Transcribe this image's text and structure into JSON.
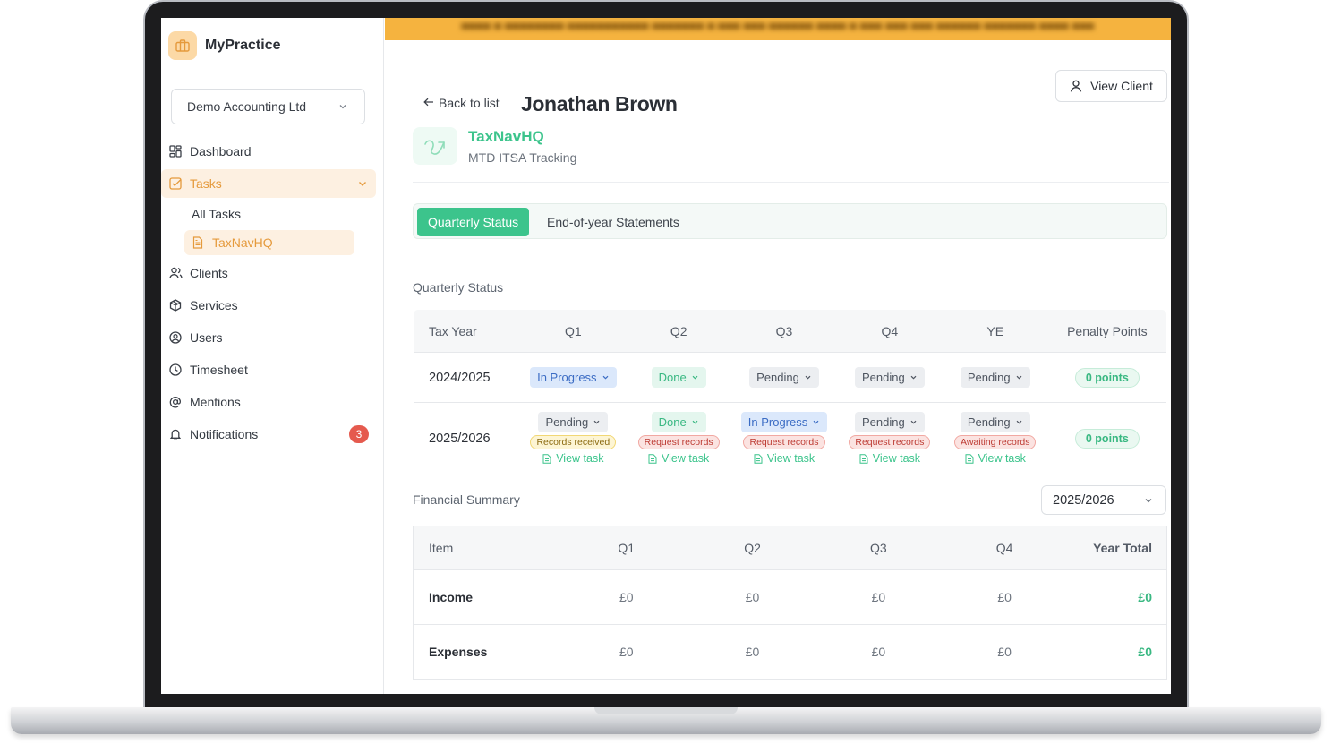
{
  "brand": {
    "name": "MyPractice"
  },
  "org_select": {
    "value": "Demo Accounting Ltd"
  },
  "nav": {
    "dashboard": "Dashboard",
    "tasks": "Tasks",
    "all_tasks": "All Tasks",
    "taxnavhq": "TaxNavHQ",
    "clients": "Clients",
    "services": "Services",
    "users": "Users",
    "timesheet": "Timesheet",
    "mentions": "Mentions",
    "notifications": "Notifications",
    "notifications_count": "3"
  },
  "header": {
    "back_label": "Back to list",
    "title": "Jonathan Brown",
    "view_client_label": "View Client"
  },
  "app": {
    "name": "TaxNavHQ",
    "subtitle": "MTD ITSA Tracking"
  },
  "tabs": {
    "active": "Quarterly Status",
    "inactive": "End-of-year Statements"
  },
  "quarterly": {
    "section_title": "Quarterly Status",
    "columns": [
      "Tax Year",
      "Q1",
      "Q2",
      "Q3",
      "Q4",
      "YE",
      "Penalty Points"
    ],
    "rows": [
      {
        "year": "2024/2025",
        "cells": [
          {
            "status": "In Progress"
          },
          {
            "status": "Done"
          },
          {
            "status": "Pending"
          },
          {
            "status": "Pending"
          },
          {
            "status": "Pending"
          }
        ],
        "points": "0 points"
      },
      {
        "year": "2025/2026",
        "cells": [
          {
            "status": "Pending",
            "tag": "Records received",
            "link": "View task"
          },
          {
            "status": "Done",
            "tag": "Request records",
            "link": "View task"
          },
          {
            "status": "In Progress",
            "tag": "Request records",
            "link": "View task"
          },
          {
            "status": "Pending",
            "tag": "Request records",
            "link": "View task"
          },
          {
            "status": "Pending",
            "tag": "Awaiting records",
            "link": "View task"
          }
        ],
        "points": "0 points"
      }
    ]
  },
  "financial": {
    "section_title": "Financial Summary",
    "year_select": "2025/2026",
    "columns": [
      "Item",
      "Q1",
      "Q2",
      "Q3",
      "Q4",
      "Year Total"
    ],
    "rows": [
      {
        "item": "Income",
        "q1": "£0",
        "q2": "£0",
        "q3": "£0",
        "q4": "£0",
        "total": "£0"
      },
      {
        "item": "Expenses",
        "q1": "£0",
        "q2": "£0",
        "q3": "£0",
        "q4": "£0",
        "total": "£0"
      }
    ]
  },
  "colors": {
    "accent": "#3cc48c",
    "brand": "#e59a3c",
    "banner": "#f5b33f",
    "badge": "#e55a4e"
  }
}
